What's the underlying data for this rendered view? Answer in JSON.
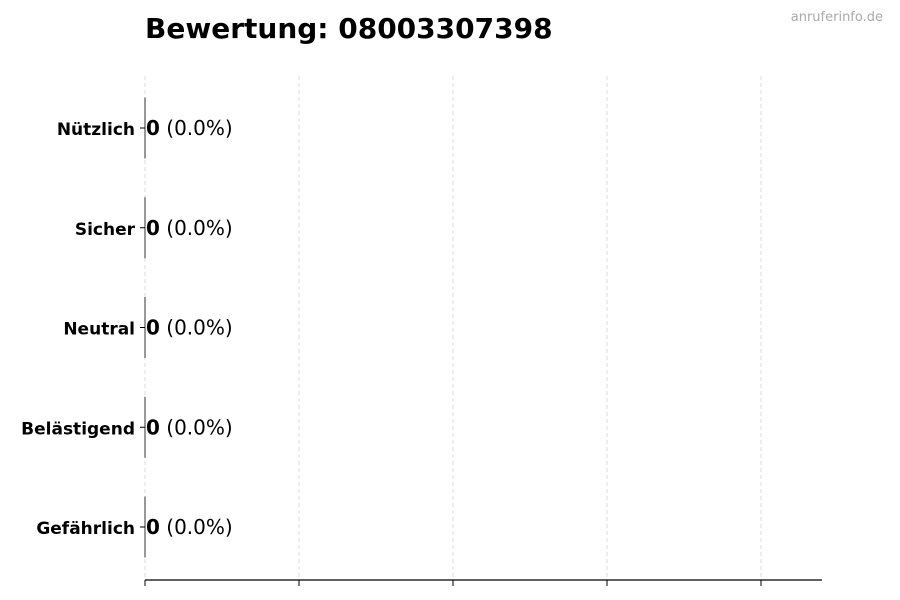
{
  "chart_data": {
    "type": "bar",
    "orientation": "horizontal",
    "title": "Bewertung: 08003307398",
    "categories": [
      "Nützlich",
      "Sicher",
      "Neutral",
      "Belästigend",
      "Gefährlich"
    ],
    "values": [
      0,
      0,
      0,
      0,
      0
    ],
    "value_labels": [
      "0",
      "0",
      "0",
      "0",
      "0"
    ],
    "percent_labels": [
      "(0.0%)",
      "(0.0%)",
      "(0.0%)",
      "(0.0%)",
      "(0.0%)"
    ],
    "xlabel": "",
    "ylabel": "",
    "grid": "vertical dashed",
    "legend": "none",
    "colors": {
      "grid": "#dddddd",
      "axis": "#000000",
      "bar_edge": "#333333"
    }
  },
  "watermark": "anruferinfo.de"
}
